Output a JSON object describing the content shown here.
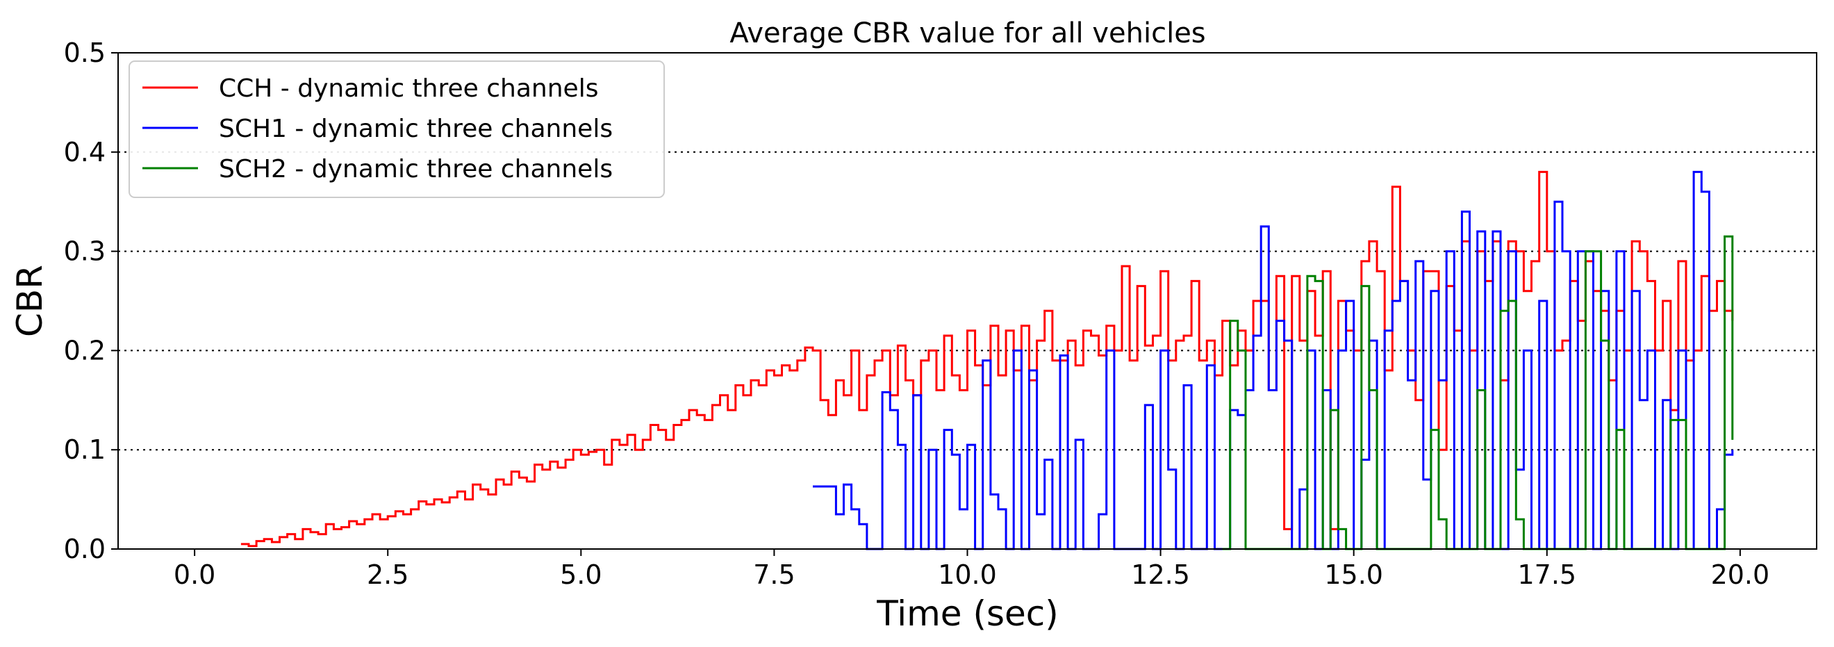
{
  "chart_data": {
    "type": "line",
    "step": true,
    "title": "Average CBR value for all vehicles",
    "xlabel": "Time (sec)",
    "ylabel": "CBR",
    "xlim": [
      -0.99,
      20.99
    ],
    "ylim": [
      0,
      0.5
    ],
    "xticks": [
      0,
      2.5,
      5,
      7.5,
      10,
      12.5,
      15,
      17.5,
      20
    ],
    "xtick_labels": [
      "0.0",
      "2.5",
      "5.0",
      "7.5",
      "10.0",
      "12.5",
      "15.0",
      "17.5",
      "20.0"
    ],
    "yticks": [
      0,
      0.1,
      0.2,
      0.3,
      0.4,
      0.5
    ],
    "ytick_labels": [
      "0.0",
      "0.1",
      "0.2",
      "0.3",
      "0.4",
      "0.5"
    ],
    "grid": {
      "axis": "y",
      "style": "dotted",
      "lines": [
        0.1,
        0.2,
        0.3,
        0.4
      ]
    },
    "legend": {
      "position": "top-left"
    },
    "series": [
      {
        "name": "CCH - dynamic three channels",
        "color": "#ff0000",
        "x": [
          0.6,
          0.7,
          0.8,
          0.9,
          1.0,
          1.1,
          1.2,
          1.3,
          1.4,
          1.5,
          1.6,
          1.7,
          1.8,
          1.9,
          2.0,
          2.1,
          2.2,
          2.3,
          2.4,
          2.5,
          2.6,
          2.7,
          2.8,
          2.9,
          3.0,
          3.1,
          3.2,
          3.3,
          3.4,
          3.5,
          3.6,
          3.7,
          3.8,
          3.9,
          4.0,
          4.1,
          4.2,
          4.3,
          4.4,
          4.5,
          4.6,
          4.7,
          4.8,
          4.9,
          5.0,
          5.1,
          5.2,
          5.3,
          5.4,
          5.5,
          5.6,
          5.7,
          5.8,
          5.9,
          6.0,
          6.1,
          6.2,
          6.3,
          6.4,
          6.5,
          6.6,
          6.7,
          6.8,
          6.9,
          7.0,
          7.1,
          7.2,
          7.3,
          7.4,
          7.5,
          7.6,
          7.7,
          7.8,
          7.9,
          8.0,
          8.1,
          8.2,
          8.3,
          8.4,
          8.5,
          8.6,
          8.7,
          8.8,
          8.9,
          9.0,
          9.1,
          9.2,
          9.3,
          9.4,
          9.5,
          9.6,
          9.7,
          9.8,
          9.9,
          10.0,
          10.1,
          10.2,
          10.3,
          10.4,
          10.5,
          10.6,
          10.7,
          10.8,
          10.9,
          11.0,
          11.1,
          11.2,
          11.3,
          11.4,
          11.5,
          11.6,
          11.7,
          11.8,
          11.9,
          12.0,
          12.1,
          12.2,
          12.3,
          12.4,
          12.5,
          12.6,
          12.7,
          12.8,
          12.9,
          13.0,
          13.1,
          13.2,
          13.3,
          13.4,
          13.5,
          13.6,
          13.7,
          13.8,
          13.9,
          14.0,
          14.1,
          14.2,
          14.3,
          14.4,
          14.5,
          14.6,
          14.7,
          14.8,
          14.9,
          15.0,
          15.1,
          15.2,
          15.3,
          15.4,
          15.5,
          15.6,
          15.7,
          15.8,
          15.9,
          16.0,
          16.1,
          16.2,
          16.3,
          16.4,
          16.5,
          16.6,
          16.7,
          16.8,
          16.9,
          17.0,
          17.1,
          17.2,
          17.3,
          17.4,
          17.5,
          17.6,
          17.7,
          17.8,
          17.9,
          18.0,
          18.1,
          18.2,
          18.3,
          18.4,
          18.5,
          18.6,
          18.7,
          18.8,
          18.9,
          19.0,
          19.1,
          19.2,
          19.3,
          19.4,
          19.5,
          19.6,
          19.7,
          19.8,
          19.9
        ],
        "values": [
          0.005,
          0.003,
          0.008,
          0.01,
          0.007,
          0.012,
          0.015,
          0.01,
          0.02,
          0.017,
          0.015,
          0.025,
          0.02,
          0.022,
          0.028,
          0.025,
          0.03,
          0.035,
          0.03,
          0.033,
          0.038,
          0.035,
          0.04,
          0.048,
          0.045,
          0.05,
          0.047,
          0.052,
          0.058,
          0.05,
          0.065,
          0.06,
          0.055,
          0.07,
          0.065,
          0.078,
          0.072,
          0.068,
          0.085,
          0.08,
          0.088,
          0.082,
          0.09,
          0.1,
          0.095,
          0.098,
          0.1,
          0.085,
          0.11,
          0.105,
          0.115,
          0.1,
          0.11,
          0.125,
          0.12,
          0.11,
          0.125,
          0.13,
          0.14,
          0.135,
          0.13,
          0.145,
          0.155,
          0.14,
          0.165,
          0.155,
          0.17,
          0.165,
          0.18,
          0.175,
          0.185,
          0.18,
          0.19,
          0.203,
          0.2,
          0.15,
          0.135,
          0.17,
          0.155,
          0.2,
          0.14,
          0.175,
          0.19,
          0.2,
          0.155,
          0.205,
          0.17,
          0.155,
          0.19,
          0.2,
          0.16,
          0.215,
          0.175,
          0.16,
          0.22,
          0.185,
          0.165,
          0.225,
          0.175,
          0.22,
          0.18,
          0.225,
          0.17,
          0.21,
          0.24,
          0.19,
          0.19,
          0.21,
          0.185,
          0.22,
          0.215,
          0.195,
          0.225,
          0.2,
          0.285,
          0.19,
          0.265,
          0.205,
          0.215,
          0.28,
          0.19,
          0.21,
          0.215,
          0.27,
          0.19,
          0.21,
          0.175,
          0.23,
          0.185,
          0.22,
          0.2,
          0.25,
          0.25,
          0.16,
          0.275,
          0.02,
          0.275,
          0.21,
          0.26,
          0.215,
          0.28,
          0.02,
          0.25,
          0.22,
          0.2,
          0.29,
          0.31,
          0.28,
          0.18,
          0.365,
          0.27,
          0.2,
          0.15,
          0.28,
          0.28,
          0.1,
          0.265,
          0.22,
          0.31,
          0.2,
          0.3,
          0.27,
          0.31,
          0.17,
          0.31,
          0.3,
          0.26,
          0.29,
          0.38,
          0.3,
          0.2,
          0.21,
          0.27,
          0.23,
          0.29,
          0.26,
          0.24,
          0.17,
          0.24,
          0.2,
          0.31,
          0.3,
          0.27,
          0.2,
          0.25,
          0.14,
          0.29,
          0.19,
          0.2,
          0.275,
          0.24,
          0.27,
          0.24,
          0.23
        ]
      },
      {
        "name": "SCH1 - dynamic three channels",
        "color": "#0000ff",
        "x": [
          8.0,
          8.1,
          8.2,
          8.3,
          8.4,
          8.5,
          8.6,
          8.7,
          8.8,
          8.9,
          9.0,
          9.1,
          9.2,
          9.3,
          9.4,
          9.5,
          9.6,
          9.7,
          9.8,
          9.9,
          10.0,
          10.1,
          10.2,
          10.3,
          10.4,
          10.5,
          10.6,
          10.7,
          10.8,
          10.9,
          11.0,
          11.1,
          11.2,
          11.3,
          11.4,
          11.5,
          11.6,
          11.7,
          11.8,
          11.9,
          12.0,
          12.1,
          12.2,
          12.3,
          12.4,
          12.5,
          12.6,
          12.7,
          12.8,
          12.9,
          13.0,
          13.1,
          13.2,
          13.3,
          13.4,
          13.5,
          13.6,
          13.7,
          13.8,
          13.9,
          14.0,
          14.1,
          14.2,
          14.3,
          14.4,
          14.5,
          14.6,
          14.7,
          14.8,
          14.9,
          15.0,
          15.1,
          15.2,
          15.3,
          15.4,
          15.5,
          15.6,
          15.7,
          15.8,
          15.9,
          16.0,
          16.1,
          16.2,
          16.3,
          16.4,
          16.5,
          16.6,
          16.7,
          16.8,
          16.9,
          17.0,
          17.1,
          17.2,
          17.3,
          17.4,
          17.5,
          17.6,
          17.7,
          17.8,
          17.9,
          18.0,
          18.1,
          18.2,
          18.3,
          18.4,
          18.5,
          18.6,
          18.7,
          18.8,
          18.9,
          19.0,
          19.1,
          19.2,
          19.3,
          19.4,
          19.5,
          19.6,
          19.7,
          19.8,
          19.9
        ],
        "values": [
          0.063,
          0.063,
          0.063,
          0.035,
          0.065,
          0.04,
          0.025,
          0.0,
          0.0,
          0.158,
          0.14,
          0.105,
          0.0,
          0.155,
          0.0,
          0.1,
          0.0,
          0.12,
          0.095,
          0.04,
          0.105,
          0.0,
          0.19,
          0.055,
          0.04,
          0.0,
          0.2,
          0.0,
          0.18,
          0.035,
          0.09,
          0.0,
          0.195,
          0.0,
          0.11,
          0.0,
          0.0,
          0.035,
          0.2,
          0.0,
          0.0,
          0.0,
          0.0,
          0.145,
          0.0,
          0.2,
          0.08,
          0.0,
          0.165,
          0.0,
          0.0,
          0.185,
          0.0,
          0.0,
          0.14,
          0.135,
          0.16,
          0.215,
          0.325,
          0.16,
          0.23,
          0.21,
          0.0,
          0.06,
          0.2,
          0.0,
          0.16,
          0.0,
          0.2,
          0.25,
          0.0,
          0.09,
          0.21,
          0.0,
          0.22,
          0.25,
          0.27,
          0.17,
          0.29,
          0.07,
          0.26,
          0.17,
          0.3,
          0.0,
          0.34,
          0.0,
          0.32,
          0.0,
          0.32,
          0.0,
          0.3,
          0.08,
          0.2,
          0.0,
          0.25,
          0.0,
          0.35,
          0.3,
          0.0,
          0.3,
          0.3,
          0.0,
          0.26,
          0.0,
          0.3,
          0.0,
          0.26,
          0.15,
          0.2,
          0.0,
          0.15,
          0.0,
          0.2,
          0.0,
          0.38,
          0.36,
          0.0,
          0.04,
          0.095,
          0.1
        ]
      },
      {
        "name": "SCH2 - dynamic three channels",
        "color": "#008000",
        "x": [
          13.3,
          13.4,
          13.5,
          13.6,
          13.7,
          13.8,
          13.9,
          14.0,
          14.1,
          14.2,
          14.3,
          14.4,
          14.5,
          14.6,
          14.7,
          14.8,
          14.9,
          15.0,
          15.1,
          15.2,
          15.3,
          15.4,
          15.5,
          15.6,
          15.7,
          15.8,
          15.9,
          16.0,
          16.1,
          16.2,
          16.3,
          16.4,
          16.5,
          16.6,
          16.7,
          16.8,
          16.9,
          17.0,
          17.1,
          17.2,
          17.3,
          17.4,
          17.5,
          17.6,
          17.7,
          17.8,
          17.9,
          18.0,
          18.1,
          18.2,
          18.3,
          18.4,
          18.5,
          18.6,
          18.7,
          18.8,
          18.9,
          19.0,
          19.1,
          19.2,
          19.3,
          19.4,
          19.5,
          19.6,
          19.7,
          19.8,
          19.9
        ],
        "values": [
          0.0,
          0.23,
          0.2,
          0.0,
          0.0,
          0.0,
          0.0,
          0.0,
          0.0,
          0.0,
          0.0,
          0.275,
          0.27,
          0.0,
          0.14,
          0.02,
          0.0,
          0.0,
          0.265,
          0.16,
          0.0,
          0.0,
          0.0,
          0.0,
          0.0,
          0.0,
          0.0,
          0.12,
          0.03,
          0.0,
          0.0,
          0.0,
          0.0,
          0.16,
          0.0,
          0.0,
          0.24,
          0.25,
          0.03,
          0.0,
          0.0,
          0.0,
          0.0,
          0.0,
          0.0,
          0.0,
          0.0,
          0.3,
          0.3,
          0.21,
          0.0,
          0.12,
          0.0,
          0.0,
          0.0,
          0.0,
          0.0,
          0.0,
          0.13,
          0.13,
          0.0,
          0.0,
          0.0,
          0.0,
          0.0,
          0.315,
          0.11
        ]
      }
    ]
  }
}
